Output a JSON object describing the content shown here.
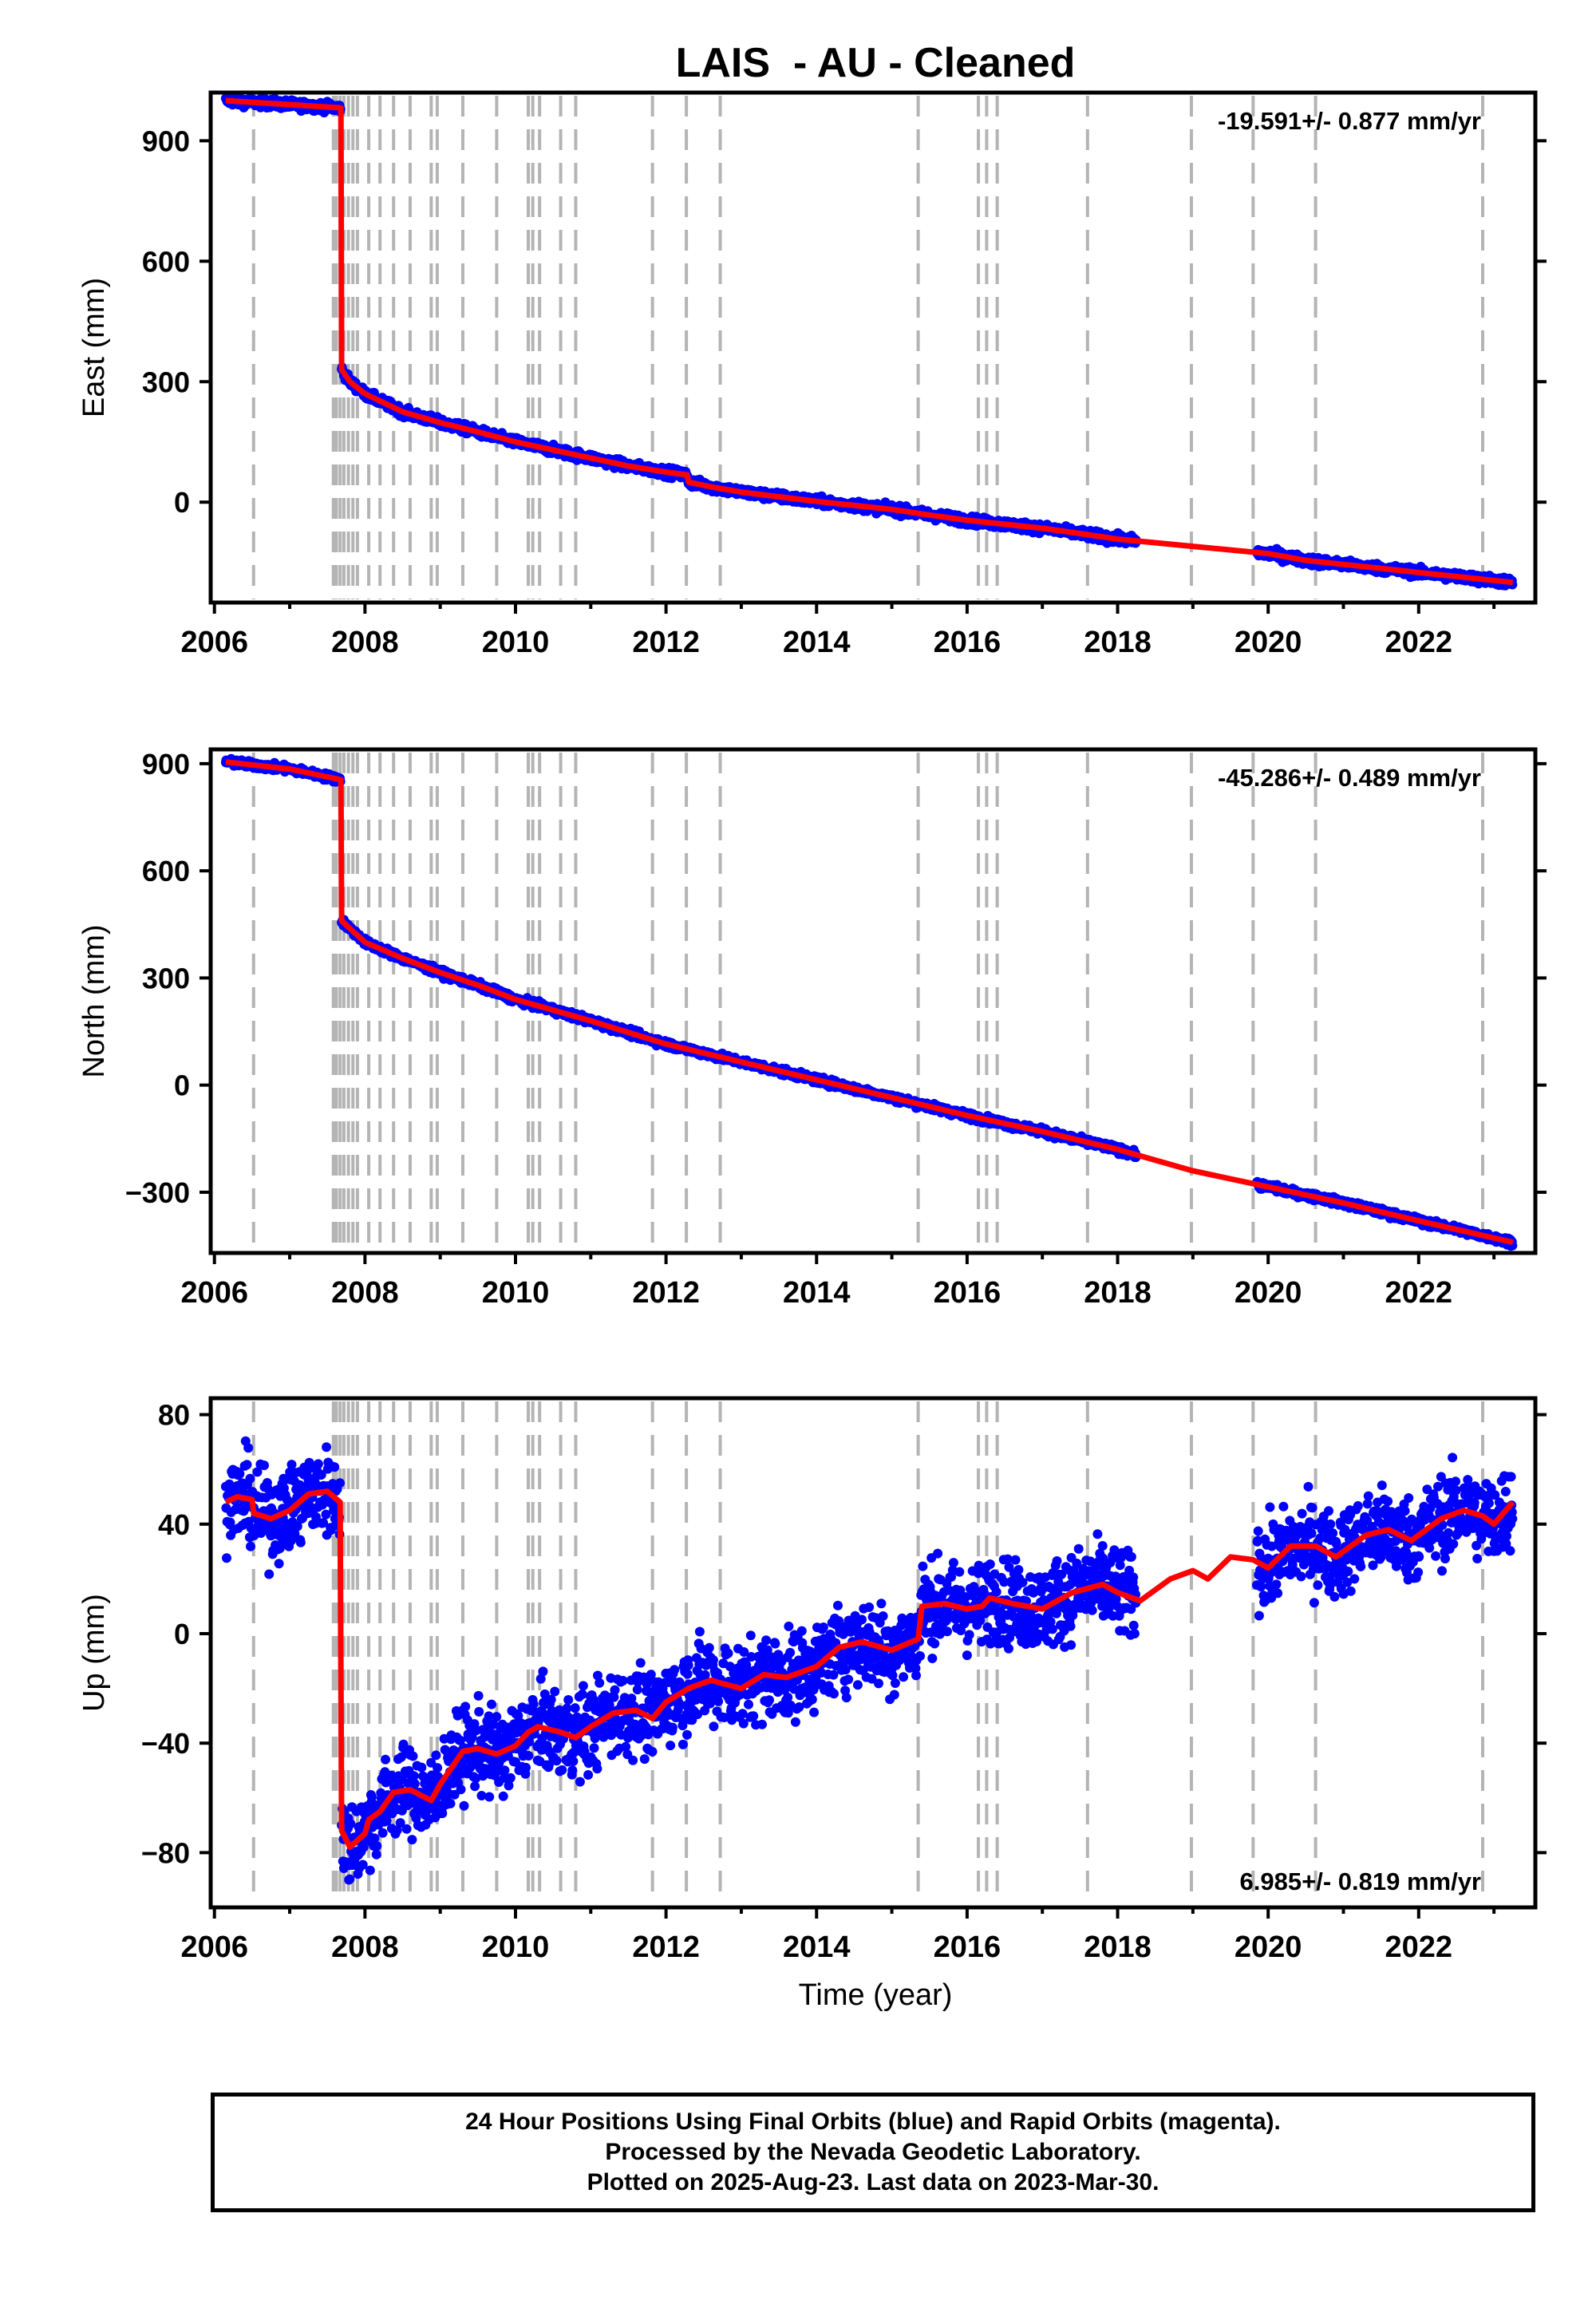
{
  "title": "LAIS  - AU - Cleaned",
  "xlabel": "Time (year)",
  "footer": {
    "line1": "24 Hour Positions Using Final Orbits (blue) and Rapid Orbits (magenta).",
    "line2": "Processed by the Nevada Geodetic Laboratory.",
    "line3": "Plotted on 2025-Aug-23. Last data on 2023-Mar-30."
  },
  "colors": {
    "data": "#0000ff",
    "model": "#ff0000",
    "events": "#b4b4b4",
    "axes": "#000000"
  },
  "x_ticks": [
    2006,
    2008,
    2010,
    2012,
    2014,
    2016,
    2018,
    2020,
    2022
  ],
  "xlim": [
    2005.95,
    2023.55
  ],
  "event_lines": [
    2006.52,
    2007.58,
    2007.62,
    2007.67,
    2007.72,
    2007.78,
    2007.84,
    2007.9,
    2008.05,
    2008.2,
    2008.38,
    2008.6,
    2008.88,
    2008.96,
    2009.3,
    2009.75,
    2010.17,
    2010.23,
    2010.32,
    2010.6,
    2010.8,
    2011.82,
    2012.27,
    2012.72,
    2015.35,
    2016.15,
    2016.26,
    2016.4,
    2017.6,
    2018.98,
    2019.8,
    2020.63,
    2022.85
  ],
  "chart_data": [
    {
      "type": "scatter",
      "component": "east",
      "ylabel": "East (mm)",
      "ylim": [
        -250,
        1020
      ],
      "y_ticks": [
        900,
        600,
        300,
        0
      ],
      "y_tick_labels": [
        "900",
        "600",
        "300",
        "0"
      ],
      "rate_label": "-19.591+/- 0.877 mm/yr",
      "rate_position": "top-right",
      "model": [
        [
          2006.15,
          1000
        ],
        [
          2007.68,
          982
        ],
        [
          2007.69,
          330
        ],
        [
          2007.8,
          300
        ],
        [
          2008.0,
          270
        ],
        [
          2008.5,
          225
        ],
        [
          2009.0,
          198
        ],
        [
          2009.5,
          175
        ],
        [
          2010.0,
          150
        ],
        [
          2010.5,
          130
        ],
        [
          2011.0,
          110
        ],
        [
          2011.5,
          90
        ],
        [
          2012.0,
          75
        ],
        [
          2012.28,
          68
        ],
        [
          2012.3,
          50
        ],
        [
          2012.6,
          38
        ],
        [
          2013.0,
          25
        ],
        [
          2014.0,
          2
        ],
        [
          2015.0,
          -18
        ],
        [
          2015.5,
          -32
        ],
        [
          2016.0,
          -45
        ],
        [
          2016.5,
          -55
        ],
        [
          2017.0,
          -65
        ],
        [
          2017.5,
          -78
        ],
        [
          2018.0,
          -92
        ],
        [
          2019.0,
          -110
        ],
        [
          2020.0,
          -128
        ],
        [
          2020.5,
          -145
        ],
        [
          2021.0,
          -155
        ],
        [
          2021.5,
          -165
        ],
        [
          2022.0,
          -175
        ],
        [
          2022.5,
          -185
        ],
        [
          2023.0,
          -195
        ],
        [
          2023.25,
          -200
        ]
      ],
      "data_segments": [
        [
          2006.15,
          2007.68
        ],
        [
          2007.69,
          2018.25
        ],
        [
          2019.85,
          2023.25
        ]
      ],
      "scatter_spread": 8
    },
    {
      "type": "scatter",
      "component": "north",
      "ylabel": "North (mm)",
      "ylim": [
        -470,
        940
      ],
      "y_ticks": [
        900,
        600,
        300,
        0,
        -300
      ],
      "y_tick_labels": [
        "900",
        "600",
        "300",
        "0",
        "−300"
      ],
      "rate_label": "-45.286+/- 0.489 mm/yr",
      "rate_position": "top-right",
      "model": [
        [
          2006.15,
          905
        ],
        [
          2007.0,
          885
        ],
        [
          2007.68,
          855
        ],
        [
          2007.69,
          460
        ],
        [
          2008.0,
          400
        ],
        [
          2008.5,
          355
        ],
        [
          2009.0,
          315
        ],
        [
          2009.5,
          280
        ],
        [
          2010.0,
          240
        ],
        [
          2011.0,
          180
        ],
        [
          2012.0,
          115
        ],
        [
          2013.0,
          65
        ],
        [
          2014.0,
          15
        ],
        [
          2015.0,
          -35
        ],
        [
          2016.0,
          -85
        ],
        [
          2017.0,
          -130
        ],
        [
          2018.0,
          -180
        ],
        [
          2019.0,
          -240
        ],
        [
          2020.0,
          -285
        ],
        [
          2021.0,
          -330
        ],
        [
          2022.0,
          -380
        ],
        [
          2023.25,
          -440
        ]
      ],
      "data_segments": [
        [
          2006.15,
          2007.68
        ],
        [
          2007.69,
          2018.25
        ],
        [
          2019.85,
          2023.25
        ]
      ],
      "scatter_spread": 7
    },
    {
      "type": "scatter",
      "component": "up",
      "ylabel": "Up (mm)",
      "ylim": [
        -100,
        86
      ],
      "y_ticks": [
        80,
        40,
        0,
        -40,
        -80
      ],
      "y_tick_labels": [
        "80",
        "40",
        "0",
        "−40",
        "−80"
      ],
      "rate_label": "6.985+/- 0.819 mm/yr",
      "rate_position": "bottom-right",
      "model": [
        [
          2006.15,
          48
        ],
        [
          2006.3,
          50
        ],
        [
          2006.5,
          49
        ],
        [
          2006.52,
          44
        ],
        [
          2006.75,
          42
        ],
        [
          2007.0,
          45
        ],
        [
          2007.25,
          51
        ],
        [
          2007.5,
          52
        ],
        [
          2007.67,
          48
        ],
        [
          2007.69,
          -72
        ],
        [
          2007.8,
          -78
        ],
        [
          2008.0,
          -73
        ],
        [
          2008.05,
          -68
        ],
        [
          2008.2,
          -65
        ],
        [
          2008.38,
          -58
        ],
        [
          2008.6,
          -57
        ],
        [
          2008.88,
          -61
        ],
        [
          2009.0,
          -55
        ],
        [
          2009.3,
          -43
        ],
        [
          2009.5,
          -42
        ],
        [
          2009.75,
          -44
        ],
        [
          2010.0,
          -41
        ],
        [
          2010.17,
          -36
        ],
        [
          2010.3,
          -34
        ],
        [
          2010.6,
          -36
        ],
        [
          2010.8,
          -38
        ],
        [
          2011.0,
          -34
        ],
        [
          2011.3,
          -29
        ],
        [
          2011.6,
          -28
        ],
        [
          2011.82,
          -31
        ],
        [
          2012.0,
          -25
        ],
        [
          2012.3,
          -20
        ],
        [
          2012.6,
          -17
        ],
        [
          2012.72,
          -18
        ],
        [
          2013.0,
          -20
        ],
        [
          2013.3,
          -15
        ],
        [
          2013.6,
          -16
        ],
        [
          2014.0,
          -12
        ],
        [
          2014.3,
          -5
        ],
        [
          2014.6,
          -3
        ],
        [
          2015.0,
          -6
        ],
        [
          2015.35,
          -2
        ],
        [
          2015.4,
          10
        ],
        [
          2015.7,
          11
        ],
        [
          2016.0,
          9
        ],
        [
          2016.2,
          10
        ],
        [
          2016.3,
          13
        ],
        [
          2016.6,
          11
        ],
        [
          2017.0,
          9
        ],
        [
          2017.4,
          15
        ],
        [
          2017.8,
          18
        ],
        [
          2018.0,
          15
        ],
        [
          2018.3,
          12
        ],
        [
          2018.7,
          20
        ],
        [
          2019.0,
          23
        ],
        [
          2019.2,
          20
        ],
        [
          2019.5,
          28
        ],
        [
          2019.8,
          27
        ],
        [
          2020.0,
          24
        ],
        [
          2020.3,
          32
        ],
        [
          2020.63,
          32
        ],
        [
          2020.9,
          28
        ],
        [
          2021.3,
          36
        ],
        [
          2021.6,
          38
        ],
        [
          2021.9,
          34
        ],
        [
          2022.3,
          42
        ],
        [
          2022.6,
          45
        ],
        [
          2022.85,
          43
        ],
        [
          2023.0,
          40
        ],
        [
          2023.25,
          48
        ]
      ],
      "data_segments": [
        [
          2006.15,
          2007.67
        ],
        [
          2007.69,
          2018.25
        ],
        [
          2019.85,
          2023.25
        ]
      ],
      "scatter_spread": 11
    }
  ]
}
